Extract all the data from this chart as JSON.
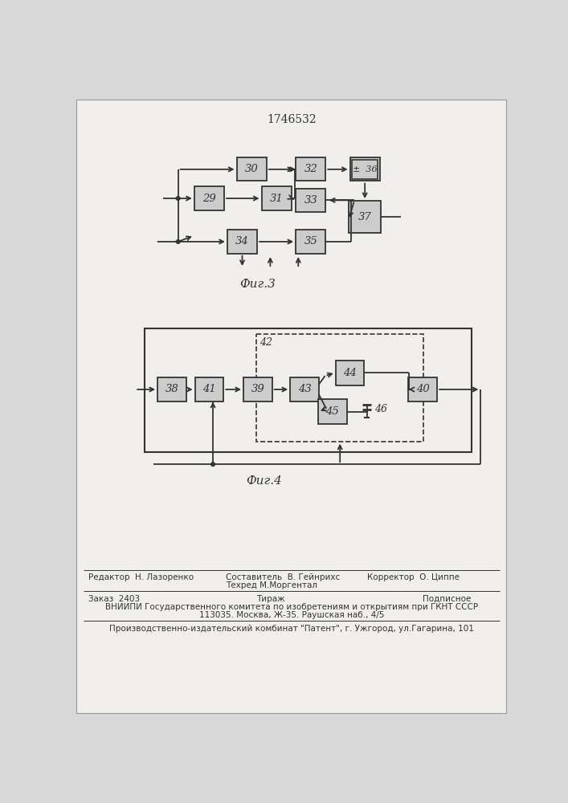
{
  "title": "1746532",
  "fig3_label": "Фиг.3",
  "fig4_label": "Фиг.4",
  "line_color": "#333333",
  "box_fill": "#cccccc",
  "footer_col1_line1": "Редактор  Н. Лазоренко",
  "footer_col2_line1": "Составитель  В. Гейнрихс",
  "footer_col2_line2": "Техред М.Моргентал",
  "footer_col3_line1": "Корректор  О. Циппе",
  "footer_row2_col1": "Заказ  2403",
  "footer_row2_col2": "Тираж",
  "footer_row2_col3": "Подписное",
  "footer_vniipи": "ВНИИПИ Государственного комитета по изобретениям и открытиям при ГКНТ СССР",
  "footer_addr": "113035. Москва, Ж-35. Раушская наб., 4/5",
  "footer_patent": "Производственно-издательский комбинат \"Патент\", г. Ужгород, ул.Гагарина, 101"
}
